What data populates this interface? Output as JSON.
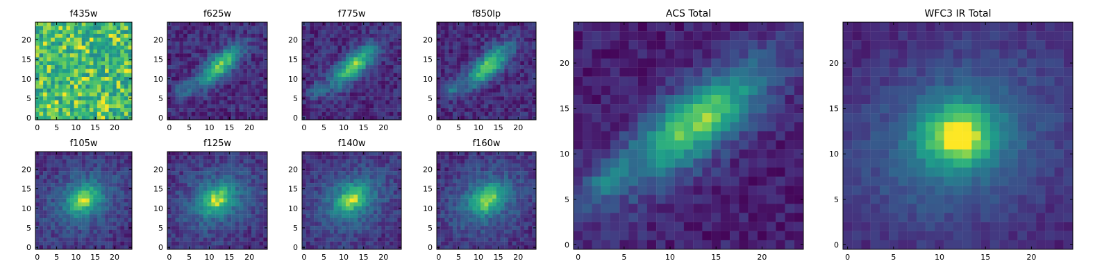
{
  "chart_data": [
    {
      "type": "heatmap",
      "title": "f435w",
      "xticks": [
        0,
        5,
        10,
        15,
        20
      ],
      "yticks": [
        0,
        5,
        10,
        15,
        20
      ],
      "ylim": [
        -0.5,
        24.5
      ],
      "xlim": [
        -0.5,
        24.5
      ],
      "colormap": "viridis",
      "morphology": "noise-dominated, mostly high values",
      "grid": false
    },
    {
      "type": "heatmap",
      "title": "f625w",
      "xticks": [
        0,
        5,
        10,
        15,
        20
      ],
      "yticks": [
        0,
        5,
        10,
        15,
        20
      ],
      "ylim": [
        -0.5,
        24.5
      ],
      "xlim": [
        -0.5,
        24.5
      ],
      "colormap": "viridis",
      "morphology": "elongated diagonal source peaked near (12, 13)",
      "grid": false
    },
    {
      "type": "heatmap",
      "title": "f775w",
      "xticks": [
        0,
        5,
        10,
        15,
        20
      ],
      "yticks": [
        0,
        5,
        10,
        15,
        20
      ],
      "ylim": [
        -0.5,
        24.5
      ],
      "xlim": [
        -0.5,
        24.5
      ],
      "colormap": "viridis",
      "morphology": "elongated diagonal source peaked near (12, 13)",
      "grid": false
    },
    {
      "type": "heatmap",
      "title": "f850lp",
      "xticks": [
        0,
        5,
        10,
        15,
        20
      ],
      "yticks": [
        0,
        5,
        10,
        15,
        20
      ],
      "ylim": [
        -0.5,
        24.5
      ],
      "xlim": [
        -0.5,
        24.5
      ],
      "colormap": "viridis",
      "morphology": "elongated diagonal source peaked near (12, 13)",
      "grid": false
    },
    {
      "type": "heatmap",
      "title": "f105w",
      "xticks": [
        0,
        5,
        10,
        15,
        20
      ],
      "yticks": [
        0,
        5,
        10,
        15,
        20
      ],
      "ylim": [
        -0.5,
        24.5
      ],
      "xlim": [
        -0.5,
        24.5
      ],
      "colormap": "viridis",
      "morphology": "compact source peaked near (12, 12)",
      "grid": false
    },
    {
      "type": "heatmap",
      "title": "f125w",
      "xticks": [
        0,
        5,
        10,
        15,
        20
      ],
      "yticks": [
        0,
        5,
        10,
        15,
        20
      ],
      "ylim": [
        -0.5,
        24.5
      ],
      "xlim": [
        -0.5,
        24.5
      ],
      "colormap": "viridis",
      "morphology": "compact source peaked near (12, 12)",
      "grid": false
    },
    {
      "type": "heatmap",
      "title": "f140w",
      "xticks": [
        0,
        5,
        10,
        15,
        20
      ],
      "yticks": [
        0,
        5,
        10,
        15,
        20
      ],
      "ylim": [
        -0.5,
        24.5
      ],
      "xlim": [
        -0.5,
        24.5
      ],
      "colormap": "viridis",
      "morphology": "compact source peaked near (12, 12)",
      "grid": false
    },
    {
      "type": "heatmap",
      "title": "f160w",
      "xticks": [
        0,
        5,
        10,
        15,
        20
      ],
      "yticks": [
        0,
        5,
        10,
        15,
        20
      ],
      "ylim": [
        -0.5,
        24.5
      ],
      "xlim": [
        -0.5,
        24.5
      ],
      "colormap": "viridis",
      "morphology": "compact source peaked near (12, 12)",
      "grid": false
    },
    {
      "type": "heatmap",
      "title": "ACS Total",
      "xticks": [
        0,
        5,
        10,
        15,
        20
      ],
      "yticks": [
        0,
        5,
        10,
        15,
        20
      ],
      "ylim": [
        -0.5,
        24.5
      ],
      "xlim": [
        -0.5,
        24.5
      ],
      "colormap": "viridis",
      "morphology": "elongated diagonal source peaked near (12, 13), lower-left knot near (3, 7)",
      "grid": false
    },
    {
      "type": "heatmap",
      "title": "WFC3 IR Total",
      "xticks": [
        0,
        5,
        10,
        15,
        20
      ],
      "yticks": [
        0,
        5,
        10,
        15,
        20
      ],
      "ylim": [
        -0.5,
        24.5
      ],
      "xlim": [
        -0.5,
        24.5
      ],
      "colormap": "viridis",
      "morphology": "compact round source peaked near (12, 12)",
      "grid": false
    }
  ]
}
